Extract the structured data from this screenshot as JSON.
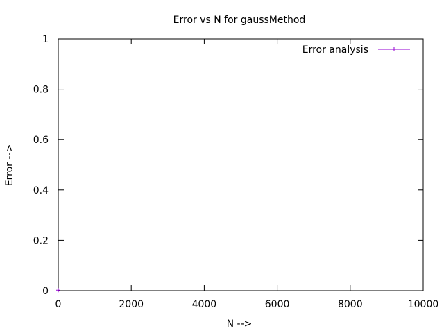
{
  "chart_data": {
    "type": "line",
    "title": "Error vs N for gaussMethod",
    "xlabel": "N -->",
    "ylabel": "Error -->",
    "xlim": [
      0,
      10000
    ],
    "ylim": [
      0,
      1
    ],
    "x_ticks": [
      0,
      2000,
      4000,
      6000,
      8000,
      10000
    ],
    "x_tick_labels": [
      "0",
      "2000",
      "4000",
      "6000",
      "8000",
      "10000"
    ],
    "y_ticks": [
      0,
      0.2,
      0.4,
      0.6,
      0.8,
      1
    ],
    "y_tick_labels": [
      "0",
      "0.2",
      "0.4",
      "0.6",
      "0.8",
      "1"
    ],
    "grid": false,
    "legend_position": "top-right",
    "series": [
      {
        "name": "Error analysis",
        "color": "#9400d3",
        "marker": "plus",
        "x": [
          0
        ],
        "y": [
          0.002
        ]
      }
    ]
  }
}
